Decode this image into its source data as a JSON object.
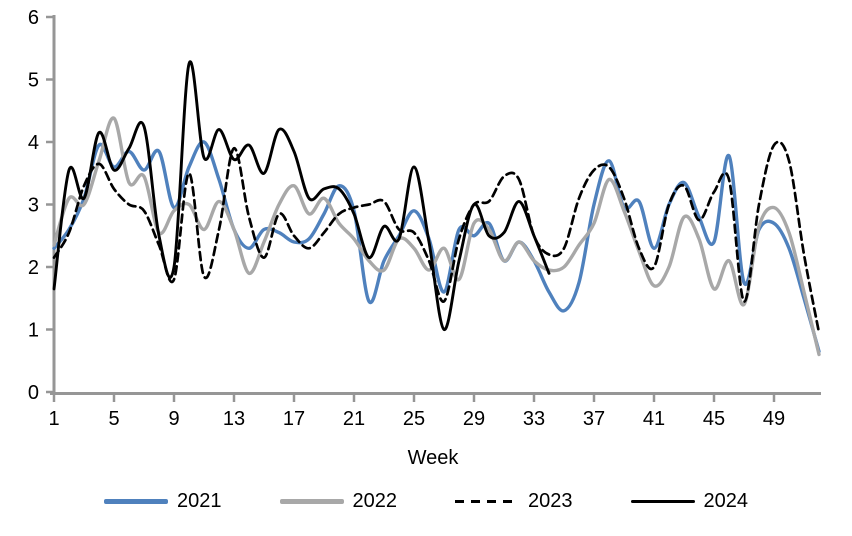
{
  "chart_data": {
    "type": "line",
    "title": "",
    "xlabel": "Week",
    "ylabel": "",
    "xlim": [
      1,
      52
    ],
    "ylim": [
      0,
      6
    ],
    "grid": false,
    "legend_position": "bottom",
    "x_ticks": [
      1,
      5,
      9,
      13,
      17,
      21,
      25,
      29,
      33,
      37,
      41,
      45,
      49
    ],
    "y_ticks": [
      0,
      1,
      2,
      3,
      4,
      5,
      6
    ],
    "x": [
      1,
      2,
      3,
      4,
      5,
      6,
      7,
      8,
      9,
      10,
      11,
      12,
      13,
      14,
      15,
      16,
      17,
      18,
      19,
      20,
      21,
      22,
      23,
      24,
      25,
      26,
      27,
      28,
      29,
      30,
      31,
      32,
      33,
      34,
      35,
      36,
      37,
      38,
      39,
      40,
      41,
      42,
      43,
      44,
      45,
      46,
      47,
      48,
      49,
      50,
      51,
      52
    ],
    "series": [
      {
        "name": "2021",
        "color": "#4F81BD",
        "style": "solid",
        "width": 3.4,
        "values": [
          2.3,
          2.6,
          3.1,
          3.95,
          3.6,
          3.85,
          3.55,
          3.85,
          2.95,
          3.6,
          4.0,
          3.4,
          2.6,
          2.3,
          2.6,
          2.55,
          2.4,
          2.45,
          2.85,
          3.3,
          2.9,
          1.45,
          2.1,
          2.5,
          2.9,
          2.45,
          1.6,
          2.6,
          2.5,
          2.7,
          2.1,
          2.4,
          2.1,
          1.6,
          1.3,
          1.75,
          3.0,
          3.7,
          2.95,
          3.05,
          2.3,
          3.0,
          3.35,
          2.8,
          2.4,
          3.78,
          1.75,
          2.6,
          2.7,
          2.3,
          1.5,
          0.65
        ]
      },
      {
        "name": "2022",
        "color": "#A8A8A8",
        "style": "solid",
        "width": 3.4,
        "values": [
          2.35,
          3.1,
          3.0,
          3.7,
          4.38,
          3.35,
          3.45,
          2.55,
          2.9,
          3.0,
          2.6,
          3.05,
          2.6,
          1.9,
          2.4,
          3.0,
          3.3,
          2.85,
          3.1,
          2.7,
          2.45,
          2.1,
          1.95,
          2.45,
          2.3,
          1.95,
          2.3,
          1.8,
          2.7,
          2.6,
          2.1,
          2.4,
          2.1,
          1.95,
          2.0,
          2.35,
          2.7,
          3.4,
          2.9,
          2.25,
          1.7,
          2.0,
          2.8,
          2.45,
          1.65,
          2.1,
          1.4,
          2.65,
          2.95,
          2.55,
          1.6,
          0.6
        ]
      },
      {
        "name": "2023",
        "color": "#000000",
        "style": "dashed",
        "width": 2.7,
        "values": [
          2.15,
          2.55,
          3.3,
          3.65,
          3.25,
          3.0,
          2.9,
          2.35,
          1.8,
          3.5,
          1.85,
          2.6,
          3.9,
          2.8,
          2.15,
          2.85,
          2.5,
          2.3,
          2.55,
          2.85,
          2.95,
          3.0,
          3.05,
          2.6,
          2.55,
          2.1,
          1.45,
          2.45,
          3.0,
          3.05,
          3.45,
          3.4,
          2.5,
          2.2,
          2.3,
          3.1,
          3.55,
          3.6,
          3.1,
          2.3,
          2.0,
          3.0,
          3.3,
          2.75,
          3.2,
          3.4,
          1.45,
          3.0,
          3.95,
          3.7,
          2.2,
          0.95
        ]
      },
      {
        "name": "2024",
        "color": "#000000",
        "style": "solid",
        "width": 2.9,
        "values": [
          1.65,
          3.55,
          3.1,
          4.15,
          3.55,
          3.9,
          4.25,
          2.5,
          2.0,
          5.25,
          3.75,
          4.2,
          3.72,
          3.95,
          3.5,
          4.2,
          3.85,
          3.1,
          3.25,
          3.25,
          2.85,
          2.15,
          2.65,
          2.45,
          3.6,
          2.4,
          1.0,
          2.1,
          3.0,
          2.5,
          2.55,
          3.05,
          2.5,
          1.9,
          null,
          null,
          null,
          null,
          null,
          null,
          null,
          null,
          null,
          null,
          null,
          null,
          null,
          null,
          null,
          null,
          null,
          null
        ]
      }
    ]
  },
  "axes": {
    "axis_color": "#969696",
    "text_color": "#000000",
    "x_axis_label": "Week"
  },
  "legend": {
    "items": [
      {
        "label": "2021"
      },
      {
        "label": "2022"
      },
      {
        "label": "2023"
      },
      {
        "label": "2024"
      }
    ]
  }
}
